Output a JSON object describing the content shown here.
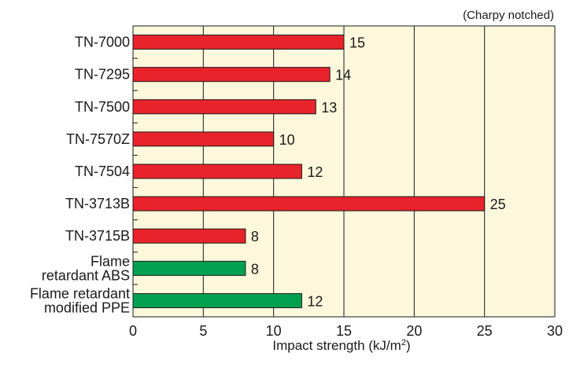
{
  "chart_data": {
    "type": "bar",
    "orientation": "horizontal",
    "annotation": "(Charpy notched)",
    "xlabel": "Impact strength (kJ/m²)",
    "xlim": [
      0,
      30
    ],
    "xticks": [
      0,
      5,
      10,
      15,
      20,
      25,
      30
    ],
    "grid": true,
    "categories": [
      [
        "TN-7000"
      ],
      [
        "TN-7295"
      ],
      [
        "TN-7500"
      ],
      [
        "TN-7570Z"
      ],
      [
        "TN-7504"
      ],
      [
        "TN-3713B"
      ],
      [
        "TN-3715B"
      ],
      [
        "Flame",
        "retardant ABS"
      ],
      [
        "Flame retardant",
        "modified PPE"
      ]
    ],
    "values": [
      15,
      14,
      13,
      10,
      12,
      25,
      8,
      8,
      12
    ],
    "bar_colors": [
      "#e8232b",
      "#e8232b",
      "#e8232b",
      "#e8232b",
      "#e8232b",
      "#e8232b",
      "#e8232b",
      "#00a051",
      "#00a051"
    ],
    "plot_background": "#fdf8dc"
  }
}
